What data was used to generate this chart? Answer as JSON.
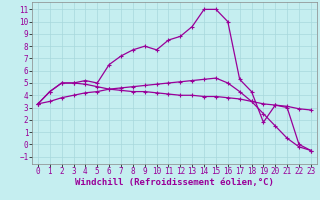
{
  "xlabel": "Windchill (Refroidissement éolien,°C)",
  "bg_color": "#c5eef0",
  "line_color": "#990099",
  "grid_color": "#a8d8dc",
  "xlim": [
    -0.5,
    23.5
  ],
  "ylim": [
    -1.6,
    11.6
  ],
  "xticks": [
    0,
    1,
    2,
    3,
    4,
    5,
    6,
    7,
    8,
    9,
    10,
    11,
    12,
    13,
    14,
    15,
    16,
    17,
    18,
    19,
    20,
    21,
    22,
    23
  ],
  "yticks": [
    -1,
    0,
    1,
    2,
    3,
    4,
    5,
    6,
    7,
    8,
    9,
    10,
    11
  ],
  "line1_x": [
    0,
    1,
    2,
    3,
    4,
    5,
    6,
    7,
    8,
    9,
    10,
    11,
    12,
    13,
    14,
    15,
    16,
    17,
    18,
    19,
    20,
    21,
    22,
    23
  ],
  "line1_y": [
    3.3,
    4.3,
    5.0,
    5.0,
    5.2,
    5.0,
    6.5,
    7.2,
    7.7,
    8.0,
    7.7,
    8.5,
    8.8,
    9.6,
    11.0,
    11.0,
    10.0,
    5.3,
    4.3,
    1.8,
    3.2,
    3.0,
    0.0,
    -0.5
  ],
  "line2_x": [
    0,
    1,
    2,
    3,
    4,
    5,
    6,
    7,
    8,
    9,
    10,
    11,
    12,
    13,
    14,
    15,
    16,
    17,
    18,
    19,
    20,
    21,
    22,
    23
  ],
  "line2_y": [
    3.3,
    4.3,
    5.0,
    5.0,
    4.9,
    4.7,
    4.5,
    4.4,
    4.3,
    4.3,
    4.2,
    4.1,
    4.0,
    4.0,
    3.9,
    3.9,
    3.8,
    3.7,
    3.5,
    3.3,
    3.2,
    3.1,
    2.9,
    2.8
  ],
  "line3_x": [
    0,
    1,
    2,
    3,
    4,
    5,
    6,
    7,
    8,
    9,
    10,
    11,
    12,
    13,
    14,
    15,
    16,
    17,
    18,
    19,
    20,
    21,
    22,
    23
  ],
  "line3_y": [
    3.3,
    3.5,
    3.8,
    4.0,
    4.2,
    4.3,
    4.5,
    4.6,
    4.7,
    4.8,
    4.9,
    5.0,
    5.1,
    5.2,
    5.3,
    5.4,
    5.0,
    4.3,
    3.5,
    2.5,
    1.5,
    0.5,
    -0.2,
    -0.5
  ],
  "tick_fontsize": 5.5,
  "xlabel_fontsize": 6.5,
  "marker": "+",
  "markersize": 3.5,
  "linewidth": 0.9
}
